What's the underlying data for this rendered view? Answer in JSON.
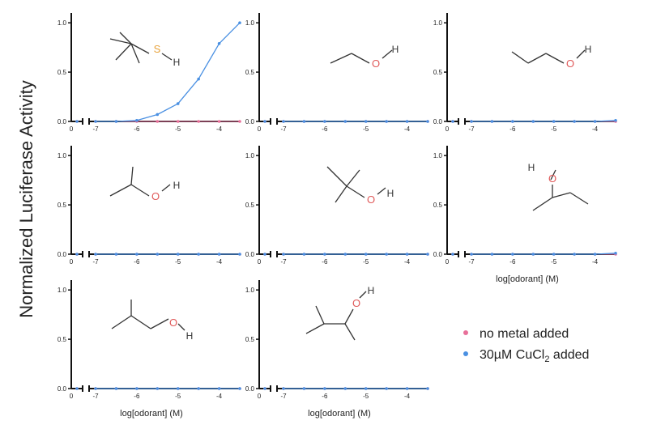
{
  "chart_data": {
    "type": "scatter",
    "ylabel": "Normalized Luciferase Activity",
    "xlabel": "log[odorant] (M)",
    "x_tick_labels": [
      "0",
      "-7",
      "-6",
      "-5",
      "-4"
    ],
    "y_tick_labels": [
      "0.0",
      "0.5",
      "1.0"
    ],
    "xlim": [
      -7,
      -3.5
    ],
    "ylim": [
      0,
      1.1
    ],
    "grid": false,
    "legend_position": "bottom-right",
    "series_styles": [
      {
        "name": "no metal added",
        "color": "#e8709a"
      },
      {
        "name": "30µM CuCl",
        "subscript": "2",
        "suffix": " added",
        "color": "#4a90e2"
      }
    ],
    "panels": [
      {
        "molecule": "tert-butyl thiol",
        "heteroatom": "S",
        "heteroatom_color": "#e8a23a",
        "show_xlabel": false,
        "series": [
          {
            "name": "no metal added",
            "x": [
              -7,
              -6.5,
              -6,
              -5.5,
              -5,
              -4.5,
              -4,
              -3.5
            ],
            "y": [
              0,
              0,
              0,
              0,
              0,
              0,
              0,
              0
            ]
          },
          {
            "name": "30µM CuCl2 added",
            "x": [
              -7,
              -6.5,
              -6,
              -5.5,
              -5,
              -4.5,
              -4,
              -3.5
            ],
            "y": [
              0,
              0,
              0.01,
              0.07,
              0.18,
              0.43,
              0.79,
              1.0
            ]
          }
        ]
      },
      {
        "molecule": "ethanol",
        "heteroatom": "O",
        "heteroatom_color": "#e05a5a",
        "show_xlabel": false,
        "series": [
          {
            "name": "no metal added",
            "x": [
              -7,
              -6.5,
              -6,
              -5.5,
              -5,
              -4.5,
              -4,
              -3.5
            ],
            "y": [
              0,
              0,
              0,
              0,
              0,
              0,
              0,
              0
            ]
          },
          {
            "name": "30µM CuCl2 added",
            "x": [
              -7,
              -6.5,
              -6,
              -5.5,
              -5,
              -4.5,
              -4,
              -3.5
            ],
            "y": [
              0,
              0,
              0,
              0,
              0,
              0,
              0,
              0
            ]
          }
        ]
      },
      {
        "molecule": "1-propanol",
        "heteroatom": "O",
        "heteroatom_color": "#e05a5a",
        "show_xlabel": false,
        "series": [
          {
            "name": "no metal added",
            "x": [
              -7,
              -6.5,
              -6,
              -5.5,
              -5,
              -4.5,
              -4,
              -3.5
            ],
            "y": [
              0,
              0,
              0,
              0,
              0,
              0,
              0,
              0
            ]
          },
          {
            "name": "30µM CuCl2 added",
            "x": [
              -7,
              -6.5,
              -6,
              -5.5,
              -5,
              -4.5,
              -4,
              -3.5
            ],
            "y": [
              0,
              0,
              0,
              0,
              0,
              0,
              0,
              0.01
            ]
          }
        ]
      },
      {
        "molecule": "2-propanol",
        "heteroatom": "O",
        "heteroatom_color": "#e05a5a",
        "show_xlabel": false,
        "series": [
          {
            "name": "no metal added",
            "x": [
              -7,
              -6.5,
              -6,
              -5.5,
              -5,
              -4.5,
              -4,
              -3.5
            ],
            "y": [
              0,
              0,
              0,
              0,
              0,
              0,
              0,
              0
            ]
          },
          {
            "name": "30µM CuCl2 added",
            "x": [
              -7,
              -6.5,
              -6,
              -5.5,
              -5,
              -4.5,
              -4,
              -3.5
            ],
            "y": [
              0,
              0,
              0,
              0,
              0,
              0,
              0,
              0
            ]
          }
        ]
      },
      {
        "molecule": "tert-butanol",
        "heteroatom": "O",
        "heteroatom_color": "#e05a5a",
        "show_xlabel": false,
        "series": [
          {
            "name": "no metal added",
            "x": [
              -7,
              -6.5,
              -6,
              -5.5,
              -5,
              -4.5,
              -4,
              -3.5
            ],
            "y": [
              0,
              0,
              0,
              0,
              0,
              0,
              0,
              0
            ]
          },
          {
            "name": "30µM CuCl2 added",
            "x": [
              -7,
              -6.5,
              -6,
              -5.5,
              -5,
              -4.5,
              -4,
              -3.5
            ],
            "y": [
              0,
              0,
              0,
              0,
              0,
              0,
              0,
              0
            ]
          }
        ]
      },
      {
        "molecule": "2-butanol",
        "heteroatom": "O",
        "heteroatom_color": "#e05a5a",
        "show_xlabel": true,
        "series": [
          {
            "name": "no metal added",
            "x": [
              -7,
              -6.5,
              -6,
              -5.5,
              -5,
              -4.5,
              -4,
              -3.5
            ],
            "y": [
              0,
              0,
              0,
              0,
              0,
              0,
              0,
              0
            ]
          },
          {
            "name": "30µM CuCl2 added",
            "x": [
              -7,
              -6.5,
              -6,
              -5.5,
              -5,
              -4.5,
              -4,
              -3.5
            ],
            "y": [
              0,
              0,
              0,
              0,
              0,
              0,
              0,
              0.01
            ]
          }
        ]
      },
      {
        "molecule": "isobutanol",
        "heteroatom": "O",
        "heteroatom_color": "#e05a5a",
        "show_xlabel": true,
        "series": [
          {
            "name": "no metal added",
            "x": [
              -7,
              -6.5,
              -6,
              -5.5,
              -5,
              -4.5,
              -4,
              -3.5
            ],
            "y": [
              0,
              0,
              0,
              0,
              0,
              0,
              0,
              0
            ]
          },
          {
            "name": "30µM CuCl2 added",
            "x": [
              -7,
              -6.5,
              -6,
              -5.5,
              -5,
              -4.5,
              -4,
              -3.5
            ],
            "y": [
              0,
              0,
              0,
              0,
              0,
              0,
              0,
              0
            ]
          }
        ]
      },
      {
        "molecule": "3-methyl-2-butanol",
        "heteroatom": "O",
        "heteroatom_color": "#e05a5a",
        "show_xlabel": true,
        "series": [
          {
            "name": "no metal added",
            "x": [
              -7,
              -6.5,
              -6,
              -5.5,
              -5,
              -4.5,
              -4,
              -3.5
            ],
            "y": [
              0,
              0,
              0,
              0,
              0,
              0,
              0,
              0
            ]
          },
          {
            "name": "30µM CuCl2 added",
            "x": [
              -7,
              -6.5,
              -6,
              -5.5,
              -5,
              -4.5,
              -4,
              -3.5
            ],
            "y": [
              0,
              0,
              0,
              0,
              0,
              0,
              0,
              0
            ]
          }
        ]
      }
    ]
  }
}
